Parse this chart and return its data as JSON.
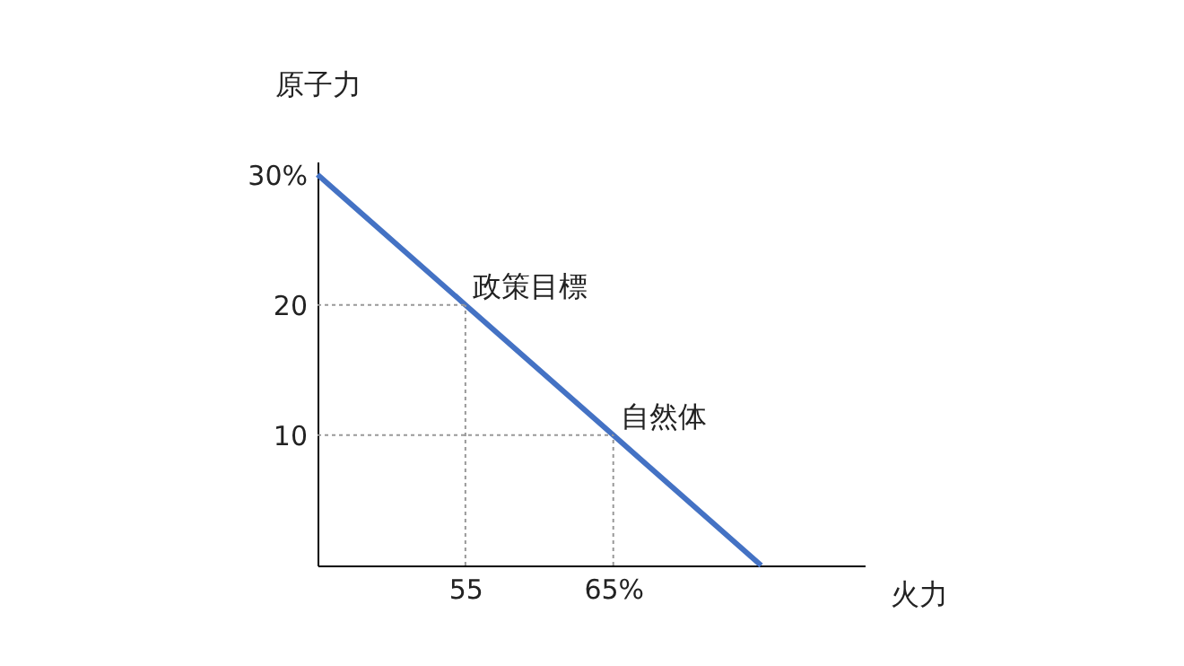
{
  "chart_data": {
    "type": "line",
    "xlabel": "火力",
    "ylabel": "原子力",
    "x": [
      45,
      55,
      65,
      75
    ],
    "series": [
      {
        "color": "#4472c4",
        "values": [
          30,
          20,
          10,
          0
        ]
      }
    ],
    "xlim": [
      45,
      82
    ],
    "ylim": [
      0,
      31
    ],
    "xticks": [
      55,
      {
        "value": 65,
        "label": "65%"
      }
    ],
    "yticks": [
      10,
      20,
      {
        "value": 30,
        "label": "30%"
      }
    ],
    "annotations": [
      {
        "text": "政策目標",
        "x": 55,
        "y": 20
      },
      {
        "text": "自然体",
        "x": 65,
        "y": 10
      }
    ],
    "grid": false,
    "marker": "none",
    "line_style": "solid"
  }
}
